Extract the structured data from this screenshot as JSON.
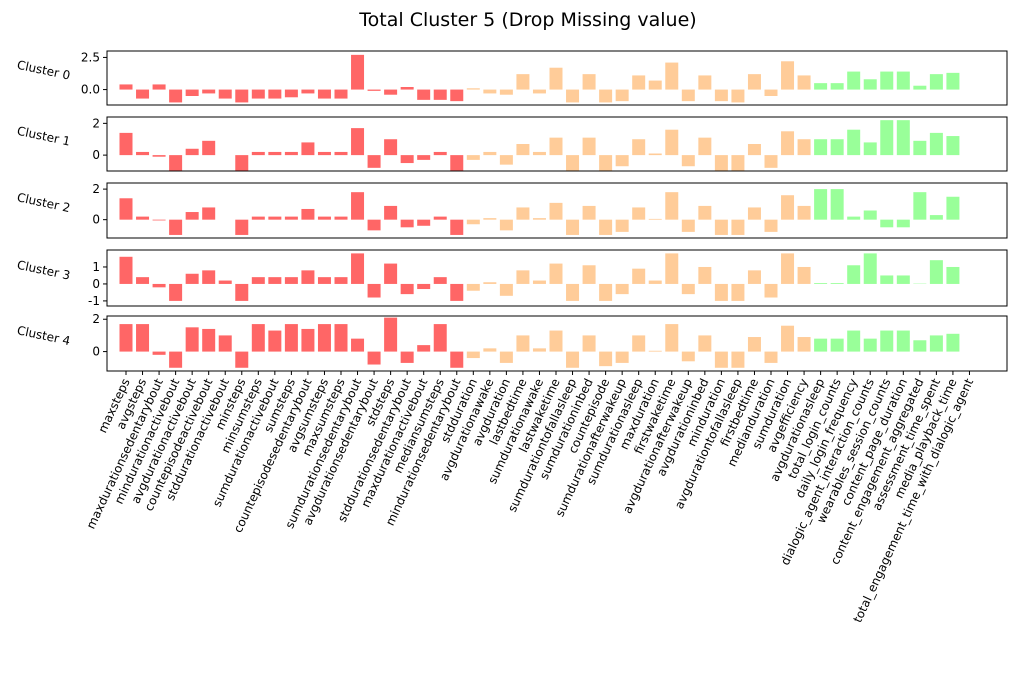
{
  "chart_data": {
    "type": "bar",
    "title": "Total Cluster 5 (Drop Missing value)",
    "categories": [
      "maxsteps",
      "avgsteps",
      "maxdurationsedentarybout",
      "mindurationactivebout",
      "avgdurationactivebout",
      "countepisodeactivebout",
      "stddurationactivebout",
      "minsteps",
      "minsumsteps",
      "sumdurationactivebout",
      "sumsteps",
      "countepisodesedentarybout",
      "avgsumsteps",
      "maxsumsteps",
      "sumdurationsedentarybout",
      "avgdurationsedentarybout",
      "stdsteps",
      "stddurationsedentarybout",
      "maxdurationactivebout",
      "mediansumsteps",
      "mindurationsedentarybout",
      "stdduration",
      "avgdurationawake",
      "avgduration",
      "lastbedtime",
      "sumdurationawake",
      "lastwaketime",
      "sumdurationtofallasleep",
      "sumdurationinbed",
      "countepisode",
      "sumdurationafterwakeup",
      "sumdurationasleep",
      "maxduration",
      "firstwaketime",
      "avgdurationafterwakeup",
      "avgdurationinbed",
      "minduration",
      "avgdurationtofallasleep",
      "firstbedtime",
      "medianduration",
      "sumduration",
      "avgefficiency",
      "avgdurationasleep",
      "total_login_counts",
      "daily_login_frequency",
      "dialogic_agent_interaction_counts",
      "wearables_session_counts",
      "content_page_duration",
      "content_engagement_aggregated",
      "assessment_time_spent",
      "media_playback_time",
      "total_engagement_time_with_dialogic_agent"
    ],
    "colors": [
      "#ff6666",
      "#ff6666",
      "#ff6666",
      "#ff6666",
      "#ff6666",
      "#ff6666",
      "#ff6666",
      "#ff6666",
      "#ff6666",
      "#ff6666",
      "#ff6666",
      "#ff6666",
      "#ff6666",
      "#ff6666",
      "#ff6666",
      "#ff6666",
      "#ff6666",
      "#ff6666",
      "#ff6666",
      "#ff6666",
      "#ff6666",
      "#ffcc99",
      "#ffcc99",
      "#ffcc99",
      "#ffcc99",
      "#ffcc99",
      "#ffcc99",
      "#ffcc99",
      "#ffcc99",
      "#ffcc99",
      "#ffcc99",
      "#ffcc99",
      "#ffcc99",
      "#ffcc99",
      "#ffcc99",
      "#ffcc99",
      "#ffcc99",
      "#ffcc99",
      "#ffcc99",
      "#ffcc99",
      "#ffcc99",
      "#ffcc99",
      "#99ff99",
      "#99ff99",
      "#99ff99",
      "#99ff99",
      "#99ff99",
      "#99ff99",
      "#99ff99",
      "#99ff99",
      "#99ff99",
      "#99ff99"
    ],
    "panels": [
      {
        "ylabel": "Cluster 0",
        "ylim": [
          -1.2,
          3.0
        ],
        "yticks": [
          {
            "value": 0,
            "label": "0.0"
          },
          2.5
        ],
        "values": [
          0.4,
          -0.7,
          0.4,
          -1.0,
          -0.5,
          -0.3,
          -0.7,
          -1.0,
          -0.7,
          -0.7,
          -0.6,
          -0.3,
          -0.7,
          -0.7,
          2.7,
          -0.1,
          -0.4,
          0.2,
          -0.8,
          -0.8,
          -0.9,
          0.1,
          -0.3,
          -0.4,
          1.2,
          -0.3,
          1.7,
          -1.0,
          1.2,
          -1.0,
          -0.9,
          1.1,
          0.7,
          2.1,
          -0.9,
          1.1,
          -0.9,
          -1.0,
          1.2,
          -0.5,
          2.2,
          1.1,
          0.5,
          0.5,
          1.4,
          0.8,
          1.4,
          1.4,
          0.3,
          1.2,
          1.3,
          0
        ]
      },
      {
        "ylabel": "Cluster 1",
        "ylim": [
          -1.0,
          2.4
        ],
        "yticks": [
          0,
          2
        ],
        "values": [
          1.4,
          0.2,
          -0.1,
          -1.0,
          0.4,
          0.9,
          0,
          -1.0,
          0.2,
          0.2,
          0.2,
          0.8,
          0.2,
          0.2,
          1.7,
          -0.8,
          1.0,
          -0.5,
          -0.3,
          0.2,
          -1.0,
          -0.3,
          0.2,
          -0.6,
          0.7,
          0.2,
          1.1,
          -1.0,
          1.1,
          -1.0,
          -0.7,
          1.0,
          0.1,
          1.6,
          -0.7,
          1.1,
          -1.0,
          -1.0,
          0.7,
          -0.8,
          1.5,
          1.0,
          1.0,
          1.0,
          1.6,
          0.8,
          2.2,
          2.2,
          0.9,
          1.4,
          1.2,
          0
        ]
      },
      {
        "ylabel": "Cluster 2",
        "ylim": [
          -1.2,
          2.4
        ],
        "yticks": [
          0,
          2
        ],
        "values": [
          1.4,
          0.2,
          -0.05,
          -1.0,
          0.5,
          0.8,
          0,
          -1.0,
          0.2,
          0.2,
          0.2,
          0.7,
          0.2,
          0.2,
          1.8,
          -0.7,
          0.9,
          -0.5,
          -0.4,
          0.2,
          -1.0,
          -0.3,
          0.1,
          -0.7,
          0.8,
          0.1,
          1.1,
          -1.0,
          0.9,
          -1.0,
          -0.8,
          0.8,
          0.05,
          1.8,
          -0.8,
          0.9,
          -1.0,
          -1.0,
          0.8,
          -0.8,
          1.6,
          0.9,
          2.0,
          2.0,
          0.2,
          0.6,
          -0.5,
          -0.5,
          1.8,
          0.3,
          1.5,
          0
        ]
      },
      {
        "ylabel": "Cluster 3",
        "ylim": [
          -1.3,
          2.0
        ],
        "yticks": [
          -1,
          0,
          1
        ],
        "values": [
          1.6,
          0.4,
          -0.2,
          -1.0,
          0.6,
          0.8,
          0.2,
          -1.0,
          0.4,
          0.4,
          0.4,
          0.8,
          0.4,
          0.4,
          1.8,
          -0.8,
          1.2,
          -0.6,
          -0.3,
          0.4,
          -1.0,
          -0.4,
          0.1,
          -0.7,
          0.8,
          0.2,
          1.2,
          -1.0,
          1.1,
          -1.0,
          -0.6,
          0.9,
          0.2,
          1.8,
          -0.6,
          1.0,
          -1.0,
          -1.0,
          0.8,
          -0.8,
          1.8,
          1.0,
          0.05,
          0.05,
          1.1,
          1.8,
          0.5,
          0.5,
          0.02,
          1.4,
          1.0,
          0
        ]
      },
      {
        "ylabel": "Cluster 4",
        "ylim": [
          -1.2,
          2.2
        ],
        "yticks": [
          0,
          2
        ],
        "values": [
          1.7,
          1.7,
          -0.2,
          -1.0,
          1.5,
          1.4,
          1.0,
          -1.0,
          1.7,
          1.3,
          1.7,
          1.4,
          1.7,
          1.7,
          0.8,
          -0.8,
          2.1,
          -0.7,
          0.4,
          1.7,
          -1.0,
          -0.4,
          0.2,
          -0.7,
          1.0,
          0.2,
          1.3,
          -1.0,
          1.0,
          -0.9,
          -0.7,
          1.0,
          0.05,
          1.7,
          -0.6,
          1.0,
          -1.0,
          -1.0,
          0.9,
          -0.7,
          1.6,
          0.9,
          0.8,
          0.8,
          1.3,
          0.8,
          1.3,
          1.3,
          0.7,
          1.0,
          1.1,
          0
        ]
      }
    ]
  }
}
